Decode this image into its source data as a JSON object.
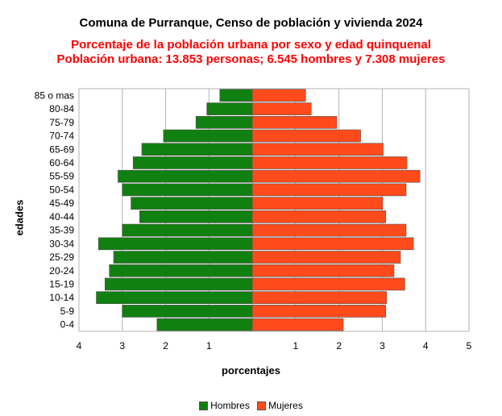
{
  "titles": {
    "main": "Comuna de Purranque, Censo de población y vivienda 2024",
    "subtitle1": "Porcentaje de la población urbana por sexo y edad quinquenal",
    "subtitle2": "Población urbana: 13.853 personas; 6.545 hombres y 7.308 mujeres"
  },
  "colors": {
    "hombres": "#108010",
    "mujeres": "#ff4a1c",
    "title_main": "#000000",
    "title_sub": "#ff0000",
    "grid": "#b3b3b3"
  },
  "chart_data": {
    "type": "bar",
    "orientation": "horizontal-population-pyramid",
    "ylabel": "edades",
    "xlabel": "porcentajes",
    "categories": [
      "0-4",
      "5-9",
      "10-14",
      "15-19",
      "20-24",
      "25-29",
      "30-34",
      "35-39",
      "40-44",
      "45-49",
      "50-54",
      "55-59",
      "60-64",
      "65-69",
      "70-74",
      "75-79",
      "80-84",
      "85 o mas"
    ],
    "series": [
      {
        "name": "Hombres",
        "values": [
          2.2,
          3.0,
          3.6,
          3.4,
          3.3,
          3.2,
          3.55,
          3.0,
          2.6,
          2.8,
          3.0,
          3.1,
          2.75,
          2.55,
          2.05,
          1.3,
          1.05,
          0.75
        ]
      },
      {
        "name": "Mujeres",
        "values": [
          2.1,
          3.08,
          3.1,
          3.52,
          3.27,
          3.42,
          3.72,
          3.55,
          3.08,
          3.01,
          3.55,
          3.87,
          3.57,
          3.02,
          2.5,
          1.95,
          1.36,
          1.23
        ]
      }
    ],
    "xticks": [
      "4",
      "3",
      "2",
      "1",
      "",
      "1",
      "2",
      "3",
      "4",
      "5"
    ],
    "xlim": [
      -4,
      5
    ],
    "grid": true,
    "legend": "bottom"
  },
  "legend": {
    "hombres_label": "Hombres",
    "mujeres_label": "Mujeres"
  }
}
